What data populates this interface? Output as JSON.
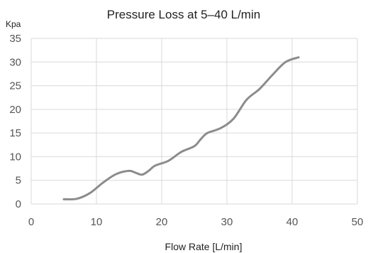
{
  "chart_data": {
    "type": "line",
    "title": "Pressure Loss at 5–40 L/min",
    "xlabel": "Flow Rate [L/min]",
    "ylabel": "Kpa",
    "xlim": [
      0,
      50
    ],
    "ylim": [
      0,
      35
    ],
    "xticks": [
      0,
      10,
      20,
      30,
      40,
      50
    ],
    "yticks": [
      0,
      5,
      10,
      15,
      20,
      25,
      30,
      35
    ],
    "grid": true,
    "series": [
      {
        "color": "#8c8c8c",
        "x": [
          5,
          7,
          9,
          11,
          13,
          15,
          16,
          17,
          18,
          19,
          21,
          23,
          25,
          26,
          27,
          29,
          31,
          33,
          35,
          37,
          39,
          41
        ],
        "y": [
          1,
          1.1,
          2.3,
          4.5,
          6.3,
          7,
          6.6,
          6.2,
          7,
          8.1,
          9.1,
          11,
          12.2,
          13.7,
          15,
          16,
          18,
          22,
          24.3,
          27.3,
          30,
          31
        ]
      }
    ]
  }
}
